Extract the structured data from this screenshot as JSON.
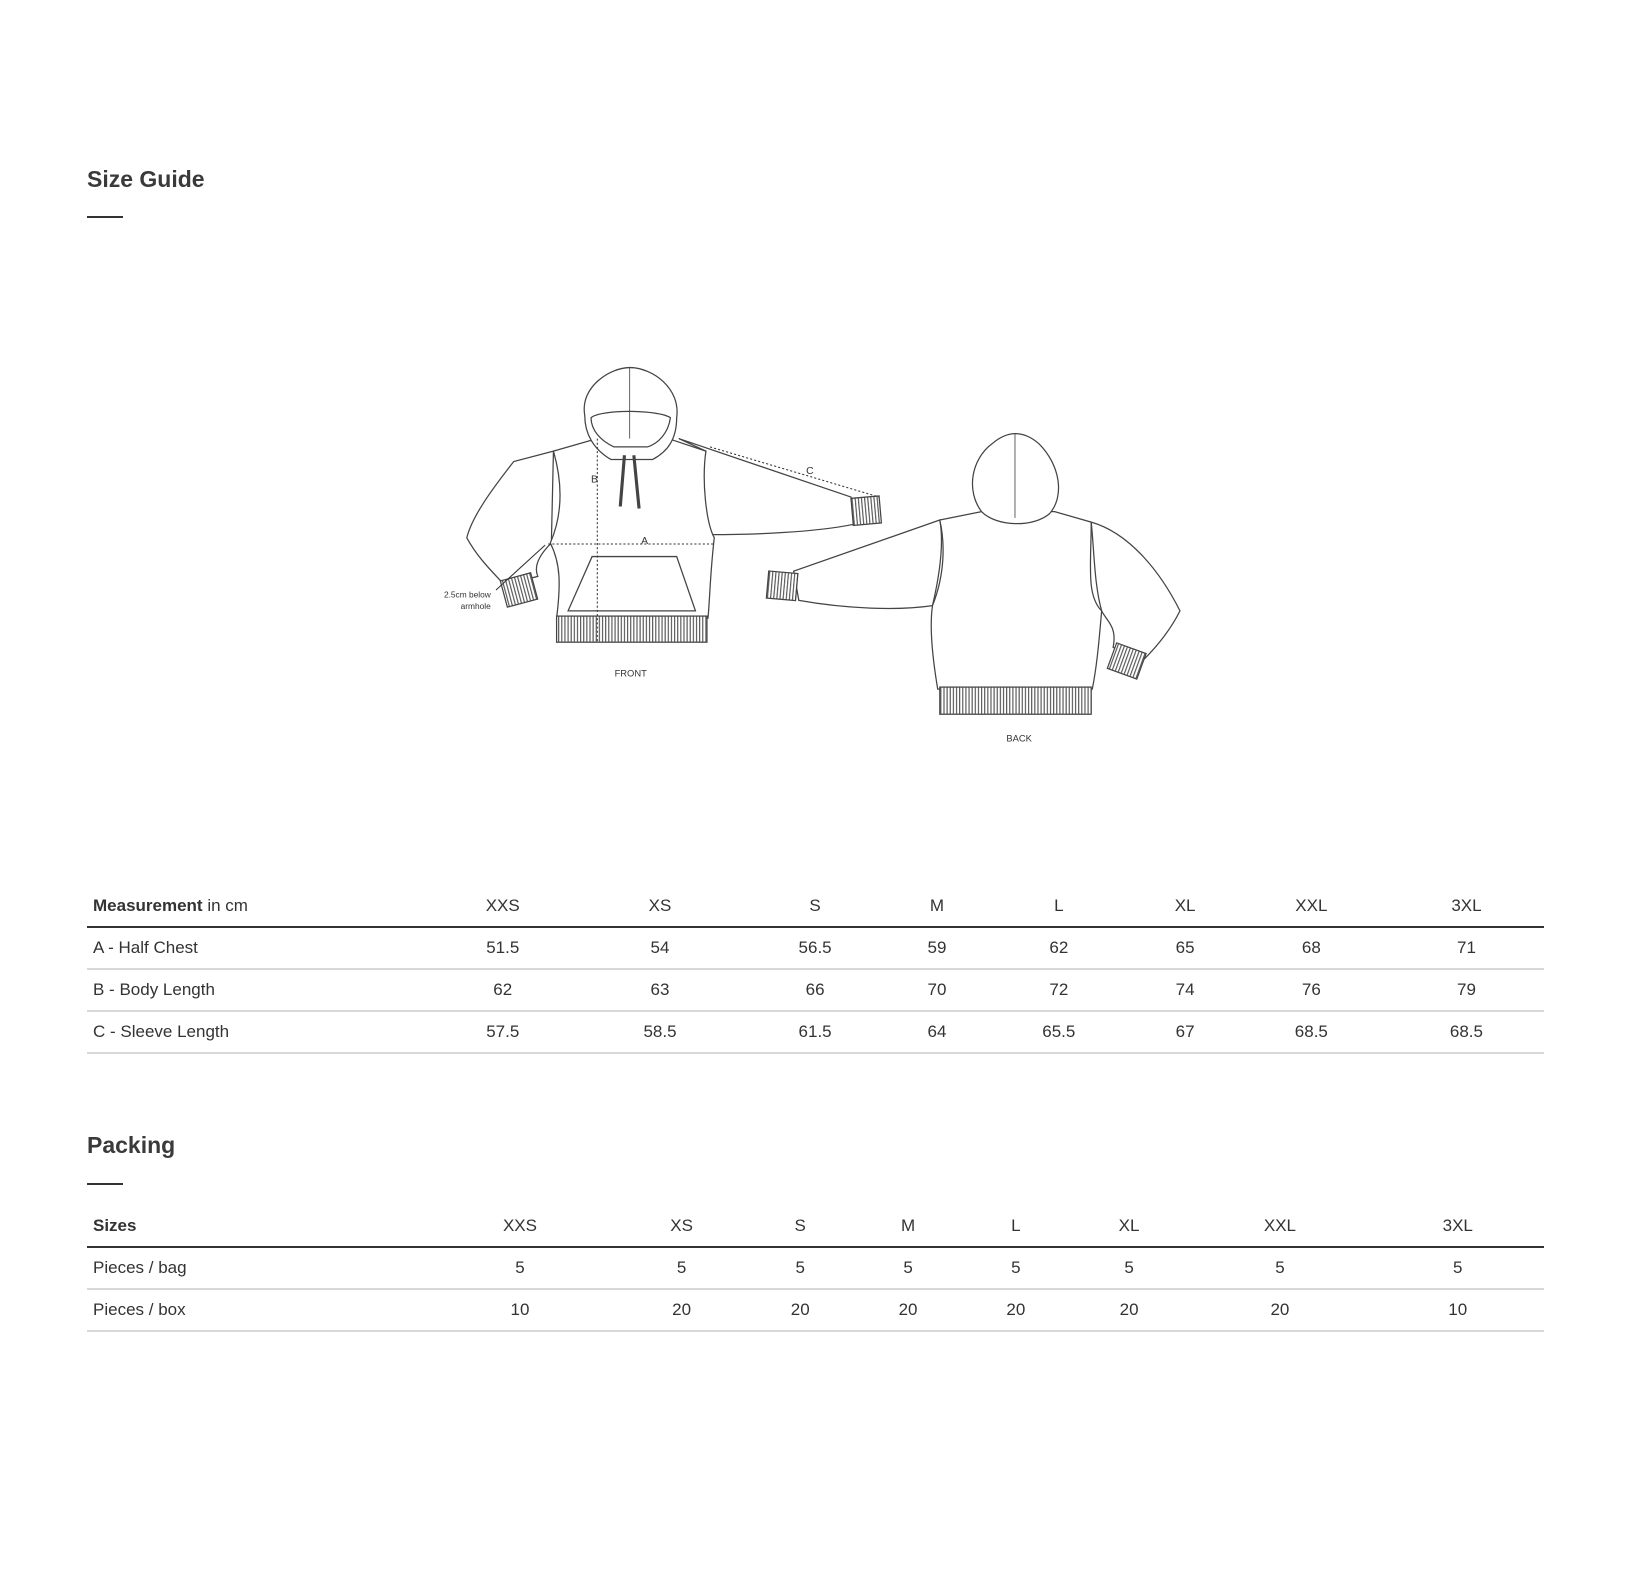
{
  "size_guide": {
    "title": "Size Guide",
    "diagram": {
      "label_a": "A",
      "label_b": "B",
      "label_c": "C",
      "note_line1": "2.5cm below",
      "note_line2": "armhole",
      "front_label": "FRONT",
      "back_label": "BACK"
    },
    "table": {
      "header_bold": "Measurement",
      "header_unit": " in cm",
      "sizes": [
        "XXS",
        "XS",
        "S",
        "M",
        "L",
        "XL",
        "XXL",
        "3XL"
      ],
      "rows": [
        {
          "label": "A - Half Chest",
          "values": [
            "51.5",
            "54",
            "56.5",
            "59",
            "62",
            "65",
            "68",
            "71"
          ]
        },
        {
          "label": "B - Body Length",
          "values": [
            "62",
            "63",
            "66",
            "70",
            "72",
            "74",
            "76",
            "79"
          ]
        },
        {
          "label": "C - Sleeve Length",
          "values": [
            "57.5",
            "58.5",
            "61.5",
            "64",
            "65.5",
            "67",
            "68.5",
            "68.5"
          ]
        }
      ]
    }
  },
  "packing": {
    "title": "Packing",
    "table": {
      "header": "Sizes",
      "sizes": [
        "XXS",
        "XS",
        "S",
        "M",
        "L",
        "XL",
        "XXL",
        "3XL"
      ],
      "rows": [
        {
          "label": "Pieces / bag",
          "values": [
            "5",
            "5",
            "5",
            "5",
            "5",
            "5",
            "5",
            "5"
          ]
        },
        {
          "label": "Pieces / box",
          "values": [
            "10",
            "20",
            "20",
            "20",
            "20",
            "20",
            "20",
            "10"
          ]
        }
      ]
    }
  }
}
